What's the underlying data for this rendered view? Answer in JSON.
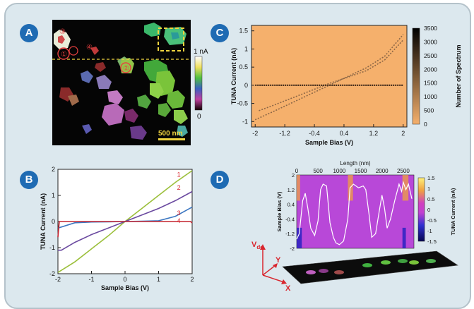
{
  "panels": {
    "a": "A",
    "b": "B",
    "c": "C",
    "d": "D"
  },
  "panel_a": {
    "colorbar_top": "1 nA",
    "colorbar_bottom": "0",
    "scale_bar": "500 nm",
    "markers": [
      "①",
      "②",
      "③",
      "④"
    ]
  },
  "colors": {
    "badge": "#1f6bb3",
    "frame": "#dce8ee",
    "curve_1": "#9bbf3a",
    "curve_2": "#6b4aa0",
    "curve_3": "#3d78c2",
    "curve_4": "#c4232f",
    "label_red": "#d9262e"
  },
  "chart_data": [
    {
      "id": "B",
      "type": "line",
      "xlabel": "Sample Bias (V)",
      "ylabel": "TUNA Current (nA)",
      "xlim": [
        -2,
        2
      ],
      "ylim": [
        -2,
        2
      ],
      "xticks": [
        -2,
        -1,
        0,
        1,
        2
      ],
      "yticks": [
        -2,
        -1,
        0,
        1,
        2
      ],
      "series": [
        {
          "name": "1",
          "x": [
            -2,
            -1.5,
            -1,
            -0.5,
            0,
            0.5,
            1,
            1.5,
            2
          ],
          "y": [
            -1.95,
            -1.55,
            -1.05,
            -0.55,
            0,
            0.5,
            1.0,
            1.5,
            1.95
          ]
        },
        {
          "name": "2",
          "x": [
            -2,
            -1.9,
            -1.5,
            -1,
            -0.5,
            0,
            0.5,
            1,
            1.5,
            2
          ],
          "y": [
            -1.1,
            -1.1,
            -0.8,
            -0.5,
            -0.25,
            0,
            0.25,
            0.5,
            0.8,
            1.15
          ]
        },
        {
          "name": "3",
          "x": [
            -2,
            -1.5,
            -1,
            -0.5,
            0,
            0.5,
            1,
            1.5,
            2
          ],
          "y": [
            -0.25,
            -0.05,
            -0.02,
            -0.01,
            0,
            0.01,
            0.03,
            0.2,
            0.55
          ]
        },
        {
          "name": "4",
          "x": [
            -2,
            -1.96,
            1.95,
            2
          ],
          "y": [
            -0.6,
            0,
            0,
            -0.05
          ]
        }
      ]
    },
    {
      "id": "C",
      "type": "heatmap",
      "xlabel": "Sample Bias (V)",
      "ylabel": "TUNA Current (nA)",
      "xticks": [
        -2,
        -1.2,
        -0.4,
        0.4,
        1.2,
        2
      ],
      "yticks": [
        1.5,
        1,
        0.5,
        0,
        -0.5,
        -1
      ],
      "xlim": [
        -2.1,
        2.1
      ],
      "ylim": [
        -1.15,
        1.65
      ],
      "colorbar_label": "Number of Spectrum",
      "colorbar_ticks": [
        3500,
        3000,
        2500,
        2000,
        1500,
        1000,
        500,
        0
      ],
      "series": [
        {
          "x": [
            -2,
            -1.5,
            -1,
            -0.5,
            0,
            0.5,
            1,
            1.5,
            2
          ],
          "y": [
            -0.95,
            -0.72,
            -0.48,
            -0.24,
            0,
            0.24,
            0.48,
            0.8,
            1.4
          ]
        },
        {
          "x": [
            -1.9,
            -1.5,
            -1,
            -0.5,
            0,
            0.5,
            1,
            1.5,
            2
          ],
          "y": [
            -0.7,
            -0.55,
            -0.35,
            -0.15,
            0.05,
            0.22,
            0.4,
            0.7,
            1.25
          ]
        },
        {
          "x": [
            -2,
            2
          ],
          "y": [
            0,
            0
          ]
        }
      ]
    },
    {
      "id": "D",
      "type": "heatmap",
      "top_label": "Length (nm)",
      "top_ticks": [
        0,
        500,
        1000,
        1500,
        2000,
        2500
      ],
      "ylabel": "Sample Bias (V)",
      "yticks": [
        2,
        1.2,
        0.4,
        -0.4,
        -1.2,
        -2
      ],
      "colorbar_label": "TUNA Current (nA)",
      "colorbar_ticks": [
        1.5,
        1,
        0.5,
        0,
        -0.5,
        -1,
        -1.5
      ],
      "profile": [
        [
          0,
          -1.5
        ],
        [
          60,
          -1.2
        ],
        [
          140,
          0.6
        ],
        [
          200,
          1.0
        ],
        [
          260,
          0.2
        ],
        [
          330,
          -0.9
        ],
        [
          420,
          -1.3
        ],
        [
          500,
          -0.5
        ],
        [
          560,
          1.2
        ],
        [
          620,
          1.5
        ],
        [
          700,
          1.4
        ],
        [
          780,
          -0.6
        ],
        [
          860,
          -1.4
        ],
        [
          920,
          -1.7
        ],
        [
          1000,
          -1.8
        ],
        [
          1100,
          -1.6
        ],
        [
          1200,
          -0.4
        ],
        [
          1250,
          1.3
        ],
        [
          1330,
          1.5
        ],
        [
          1450,
          1.3
        ],
        [
          1560,
          1.4
        ],
        [
          1620,
          1.2
        ],
        [
          1700,
          -0.2
        ],
        [
          1760,
          -1.4
        ],
        [
          1850,
          -1.2
        ],
        [
          1920,
          -0.2
        ],
        [
          2000,
          0.9
        ],
        [
          2060,
          0.2
        ],
        [
          2120,
          -0.9
        ],
        [
          2200,
          -0.4
        ],
        [
          2300,
          0.6
        ],
        [
          2400,
          1.5
        ],
        [
          2460,
          1.1
        ],
        [
          2500,
          1.6
        ],
        [
          2560,
          1.2
        ],
        [
          2620,
          1.5
        ],
        [
          2700,
          0.7
        ]
      ],
      "axes": {
        "z": "V",
        "z_sub": "dc",
        "y": "Y",
        "x": "X"
      }
    }
  ]
}
